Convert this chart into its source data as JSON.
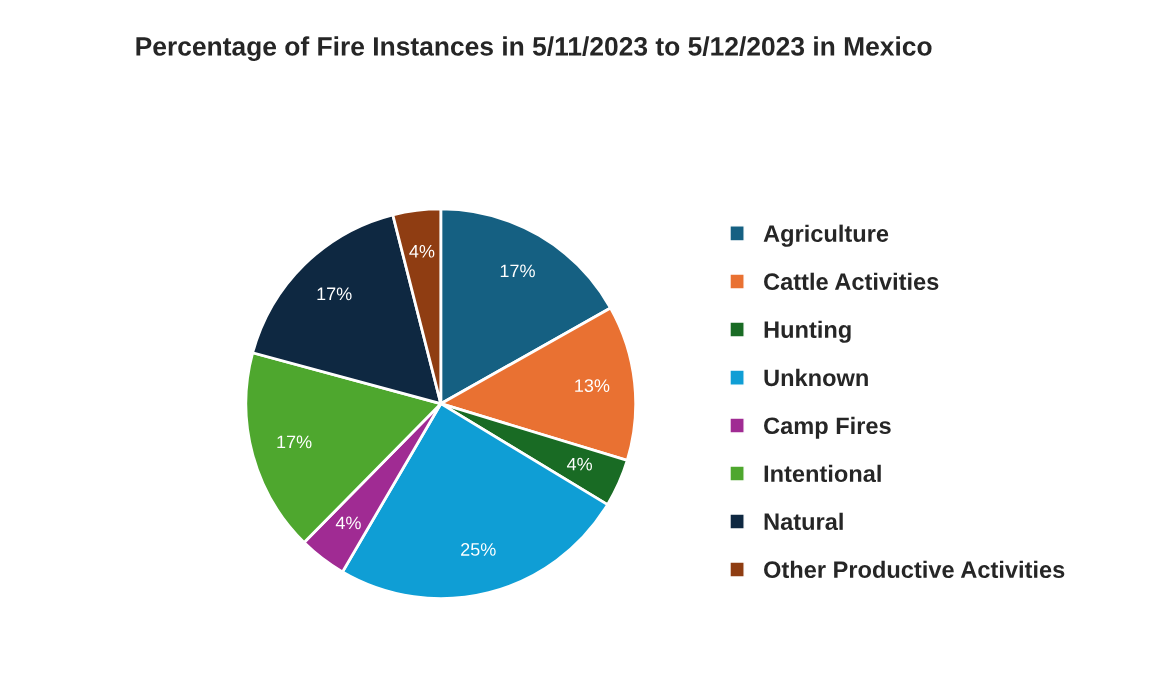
{
  "chart_data": {
    "type": "pie",
    "title": "Percentage of Fire Instances in 5/11/2023 to 5/12/2023 in Mexico",
    "categories": [
      "Agriculture",
      "Cattle Activities",
      "Hunting",
      "Unknown",
      "Camp Fires",
      "Intentional",
      "Natural",
      "Other Productive Activities"
    ],
    "values": [
      17,
      13,
      4,
      25,
      4,
      17,
      17,
      4
    ],
    "colors": [
      "#156082",
      "#e97132",
      "#196b24",
      "#0f9ed5",
      "#a02b93",
      "#4ea72e",
      "#0e2841",
      "#8f3d12"
    ],
    "value_labels": [
      "17%",
      "13%",
      "4%",
      "25%",
      "4%",
      "17%",
      "17%",
      "4%"
    ],
    "legend": "right"
  }
}
